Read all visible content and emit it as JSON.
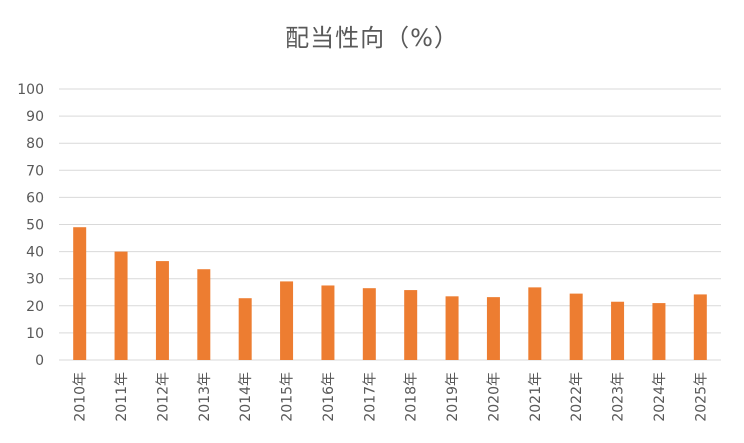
{
  "chart_data": {
    "type": "bar",
    "title": "配当性向（%）",
    "xlabel": "",
    "ylabel": "",
    "categories": [
      "2010年",
      "2011年",
      "2012年",
      "2013年",
      "2014年",
      "2015年",
      "2016年",
      "2017年",
      "2018年",
      "2019年",
      "2020年",
      "2021年",
      "2022年",
      "2023年",
      "2024年",
      "2025年"
    ],
    "values": [
      49,
      40,
      36.5,
      33.5,
      22.8,
      29,
      27.5,
      26.5,
      25.8,
      23.5,
      23.2,
      26.8,
      24.5,
      21.5,
      21,
      24.2
    ],
    "ylim": [
      0,
      100
    ],
    "yticks": [
      "0",
      "10",
      "20",
      "30",
      "40",
      "50",
      "60",
      "70",
      "80",
      "90",
      "100"
    ],
    "grid": true,
    "legend": "none",
    "bar_color": "#ED7D31",
    "grid_color": "#D9D9D9"
  }
}
